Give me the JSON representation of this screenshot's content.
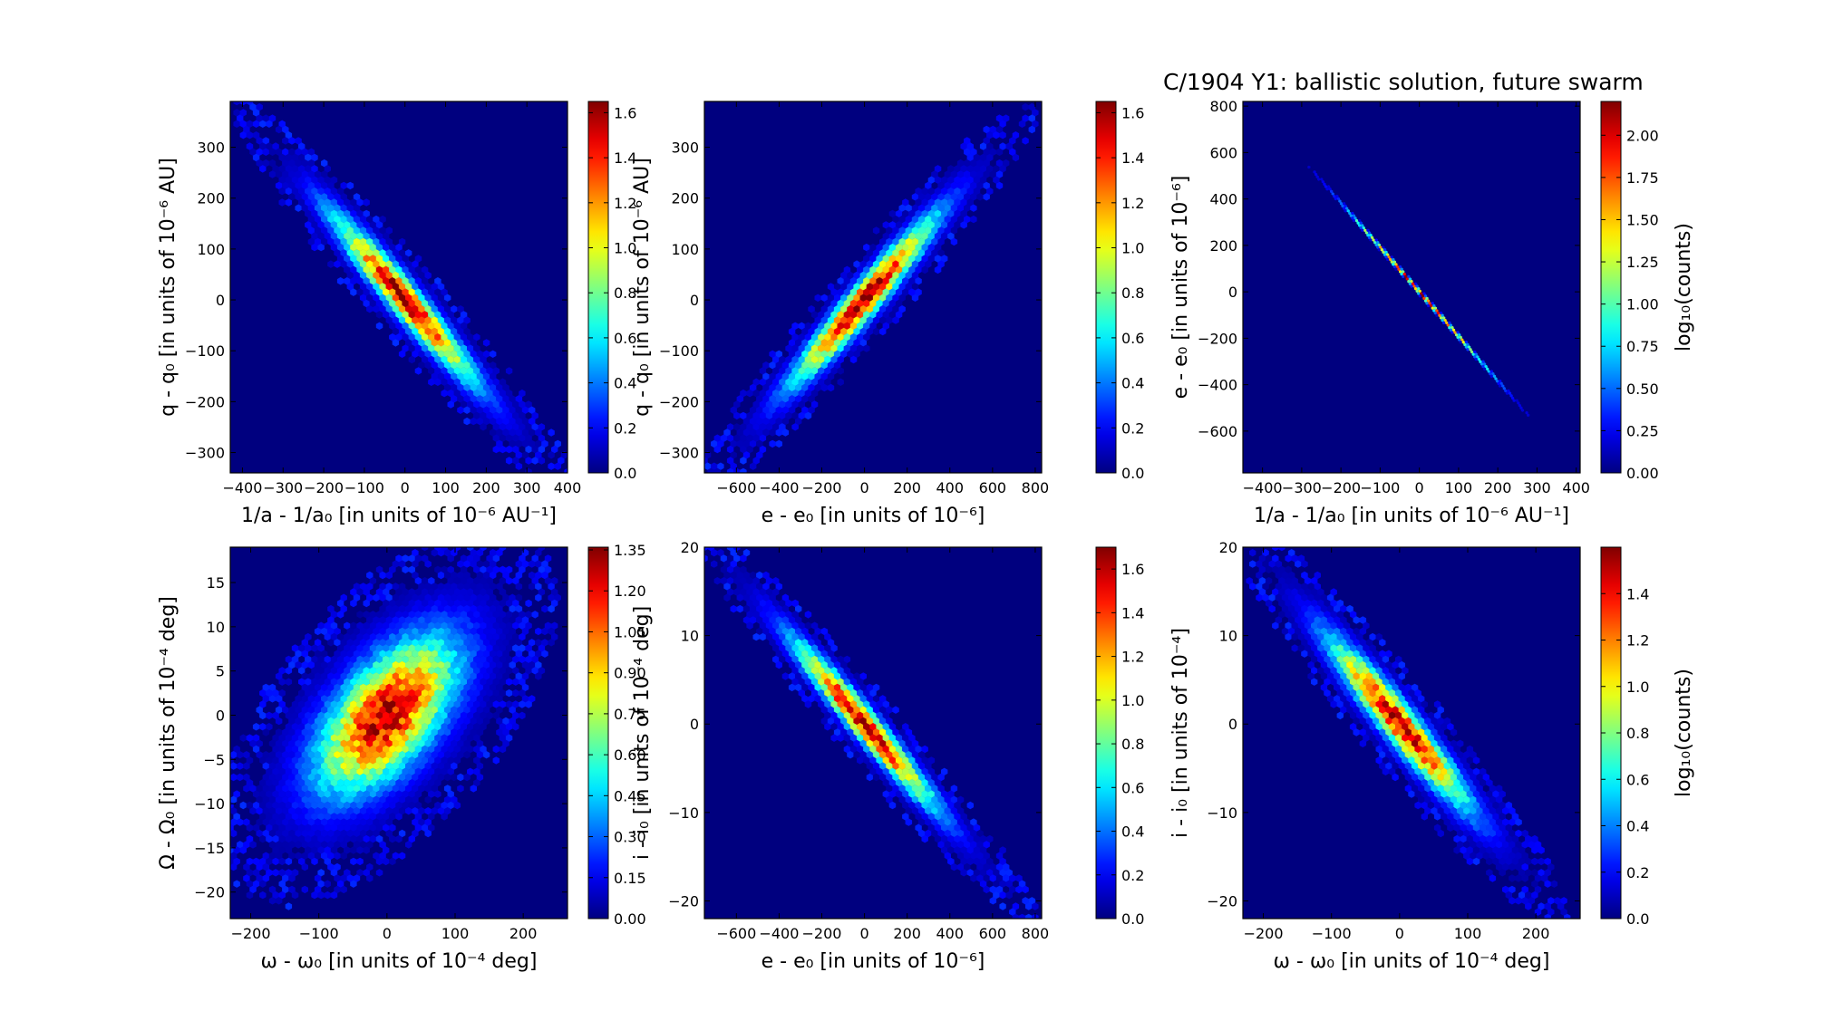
{
  "figure": {
    "title": "C/1904 Y1:  ballistic solution, future swarm"
  },
  "colors": {
    "background": "#00007f",
    "colormap": "jet",
    "text": "#000000"
  },
  "chart_data": [
    {
      "type": "heatmap",
      "subtype": "hexbin",
      "xlabel": "1/a - 1/a₀ [in units of 10⁻⁶ AU⁻¹]",
      "ylabel": "q - q₀ [in units of 10⁻⁶ AU]",
      "xlim": [
        -430,
        400
      ],
      "ylim": [
        -340,
        390
      ],
      "xticks": [
        "−400",
        "−300",
        "−200",
        "−100",
        "0",
        "100",
        "200",
        "300",
        "400"
      ],
      "xtick_values": [
        -400,
        -300,
        -200,
        -100,
        0,
        100,
        200,
        300,
        400
      ],
      "yticks": [
        "−300",
        "−200",
        "−100",
        "0",
        "100",
        "200",
        "300"
      ],
      "ytick_values": [
        -300,
        -200,
        -100,
        0,
        100,
        200,
        300
      ],
      "distribution": {
        "center": [
          0,
          0
        ],
        "sx": 120,
        "sy": 112,
        "rho": -0.96
      },
      "colorbar": {
        "label": "",
        "vmax": 1.65,
        "ticks": [
          "0.0",
          "0.2",
          "0.4",
          "0.6",
          "0.8",
          "1.0",
          "1.2",
          "1.4",
          "1.6"
        ],
        "tick_values": [
          0,
          0.2,
          0.4,
          0.6,
          0.8,
          1.0,
          1.2,
          1.4,
          1.6
        ]
      }
    },
    {
      "type": "heatmap",
      "subtype": "hexbin",
      "xlabel": "e - e₀ [in units of 10⁻⁶]",
      "ylabel": "q - q₀ [in units of 10⁻⁶ AU]",
      "xlim": [
        -750,
        830
      ],
      "ylim": [
        -340,
        390
      ],
      "xticks": [
        "−600",
        "−400",
        "−200",
        "0",
        "200",
        "400",
        "600",
        "800"
      ],
      "xtick_values": [
        -600,
        -400,
        -200,
        0,
        200,
        400,
        600,
        800
      ],
      "yticks": [
        "−300",
        "−200",
        "−100",
        "0",
        "100",
        "200",
        "300"
      ],
      "ytick_values": [
        -300,
        -200,
        -100,
        0,
        100,
        200,
        300
      ],
      "distribution": {
        "center": [
          0,
          0
        ],
        "sx": 230,
        "sy": 112,
        "rho": 0.96
      },
      "colorbar": {
        "label": "",
        "vmax": 1.65,
        "ticks": [
          "0.0",
          "0.2",
          "0.4",
          "0.6",
          "0.8",
          "1.0",
          "1.2",
          "1.4",
          "1.6"
        ],
        "tick_values": [
          0,
          0.2,
          0.4,
          0.6,
          0.8,
          1.0,
          1.2,
          1.4,
          1.6
        ]
      }
    },
    {
      "type": "heatmap",
      "subtype": "hexbin",
      "xlabel": "1/a - 1/a₀ [in units of 10⁻⁶ AU⁻¹]",
      "ylabel": "e - e₀ [in units of 10⁻⁶]",
      "xlim": [
        -450,
        410
      ],
      "ylim": [
        -780,
        820
      ],
      "xticks": [
        "−400",
        "−300",
        "−200",
        "−100",
        "0",
        "100",
        "200",
        "300",
        "400"
      ],
      "xtick_values": [
        -400,
        -300,
        -200,
        -100,
        0,
        100,
        200,
        300,
        400
      ],
      "yticks": [
        "−600",
        "−400",
        "−200",
        "0",
        "200",
        "400",
        "600",
        "800"
      ],
      "ytick_values": [
        -600,
        -400,
        -200,
        0,
        200,
        400,
        600,
        800
      ],
      "distribution": {
        "center": [
          0,
          0
        ],
        "sx": 120,
        "sy": 230,
        "rho": -0.9995
      },
      "colorbar": {
        "label": "log₁₀(counts)",
        "vmax": 2.2,
        "ticks": [
          "0.00",
          "0.25",
          "0.50",
          "0.75",
          "1.00",
          "1.25",
          "1.50",
          "1.75",
          "2.00"
        ],
        "tick_values": [
          0,
          0.25,
          0.5,
          0.75,
          1.0,
          1.25,
          1.5,
          1.75,
          2.0
        ]
      }
    },
    {
      "type": "heatmap",
      "subtype": "hexbin",
      "xlabel": "ω - ω₀ [in units of 10⁻⁴ deg]",
      "ylabel": "Ω - Ω₀ [in units of 10⁻⁴ deg]",
      "xlim": [
        -230,
        265
      ],
      "ylim": [
        -23,
        19
      ],
      "xticks": [
        "−200",
        "−100",
        "0",
        "100",
        "200"
      ],
      "xtick_values": [
        -200,
        -100,
        0,
        100,
        200
      ],
      "yticks": [
        "−20",
        "−15",
        "−10",
        "−5",
        "0",
        "5",
        "10",
        "15"
      ],
      "ytick_values": [
        -20,
        -15,
        -10,
        -5,
        0,
        5,
        10,
        15
      ],
      "distribution": {
        "center": [
          0,
          0
        ],
        "sx": 70,
        "sy": 6,
        "rho": 0.6
      },
      "colorbar": {
        "label": "",
        "vmax": 1.36,
        "ticks": [
          "0.00",
          "0.15",
          "0.30",
          "0.45",
          "0.60",
          "0.75",
          "0.90",
          "1.05",
          "1.20",
          "1.35"
        ],
        "tick_values": [
          0,
          0.15,
          0.3,
          0.45,
          0.6,
          0.75,
          0.9,
          1.05,
          1.2,
          1.35
        ]
      }
    },
    {
      "type": "heatmap",
      "subtype": "hexbin",
      "xlabel": "e - e₀ [in units of 10⁻⁶]",
      "ylabel": "i - i₀ [in units of 10⁻⁴ deg]",
      "xlim": [
        -750,
        830
      ],
      "ylim": [
        -22,
        20
      ],
      "xticks": [
        "−600",
        "−400",
        "−200",
        "0",
        "200",
        "400",
        "600",
        "800"
      ],
      "xtick_values": [
        -600,
        -400,
        -200,
        0,
        200,
        400,
        600,
        800
      ],
      "yticks": [
        "−20",
        "−10",
        "0",
        "10",
        "20"
      ],
      "ytick_values": [
        -20,
        -10,
        0,
        10,
        20
      ],
      "distribution": {
        "center": [
          0,
          0
        ],
        "sx": 230,
        "sy": 6.5,
        "rho": -0.97
      },
      "colorbar": {
        "label": "",
        "vmax": 1.7,
        "ticks": [
          "0.0",
          "0.2",
          "0.4",
          "0.6",
          "0.8",
          "1.0",
          "1.2",
          "1.4",
          "1.6"
        ],
        "tick_values": [
          0,
          0.2,
          0.4,
          0.6,
          0.8,
          1.0,
          1.2,
          1.4,
          1.6
        ]
      }
    },
    {
      "type": "heatmap",
      "subtype": "hexbin",
      "xlabel": "ω - ω₀ [in units of 10⁻⁴ deg]",
      "ylabel": "i - i₀ [in units of 10⁻⁴]",
      "xlim": [
        -230,
        265
      ],
      "ylim": [
        -22,
        20
      ],
      "xticks": [
        "−200",
        "−100",
        "0",
        "100",
        "200"
      ],
      "xtick_values": [
        -200,
        -100,
        0,
        100,
        200
      ],
      "yticks": [
        "−20",
        "−10",
        "0",
        "10",
        "20"
      ],
      "ytick_values": [
        -20,
        -10,
        0,
        10,
        20
      ],
      "distribution": {
        "center": [
          0,
          0
        ],
        "sx": 70,
        "sy": 6.5,
        "rho": -0.95
      },
      "colorbar": {
        "label": "log₁₀(counts)",
        "vmax": 1.6,
        "ticks": [
          "0.0",
          "0.2",
          "0.4",
          "0.6",
          "0.8",
          "1.0",
          "1.2",
          "1.4"
        ],
        "tick_values": [
          0,
          0.2,
          0.4,
          0.6,
          0.8,
          1.0,
          1.2,
          1.4
        ]
      }
    }
  ]
}
